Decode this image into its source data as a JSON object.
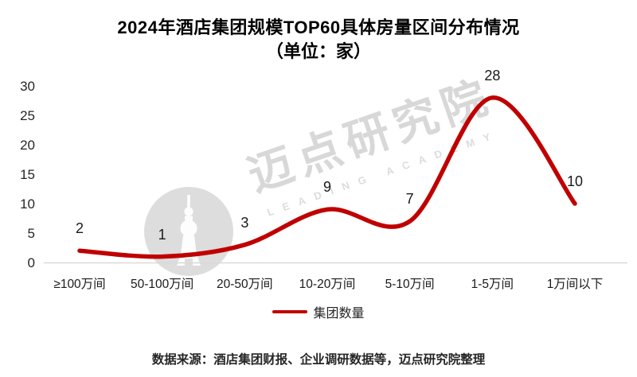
{
  "chart_data": {
    "type": "line",
    "title": "2024年酒店集团规模TOP60具体房量区间分布情况",
    "subtitle": "（单位：家）",
    "categories": [
      "≥100万间",
      "50-100万间",
      "20-50万间",
      "10-20万间",
      "5-10万间",
      "1-5万间",
      "1万间以下"
    ],
    "series": [
      {
        "name": "集团数量",
        "values": [
          2,
          1,
          3,
          9,
          7,
          28,
          10
        ],
        "color": "#C00000"
      }
    ],
    "ylim": [
      0,
      30
    ],
    "yticks": [
      0,
      5,
      10,
      15,
      20,
      25,
      30
    ],
    "grid": false,
    "smooth": true,
    "legend_position": "bottom",
    "axis_line_color": "#D9D9D9"
  },
  "legend": {
    "label": "集团数量"
  },
  "watermark": {
    "text": "迈点研究院",
    "subtext": "LEADING ACADEMY",
    "logo": "pearl-tower-icon",
    "color": "#d8d8d8"
  },
  "footer": {
    "source": "数据来源：酒店集团财报、企业调研数据等，迈点研究院整理"
  }
}
